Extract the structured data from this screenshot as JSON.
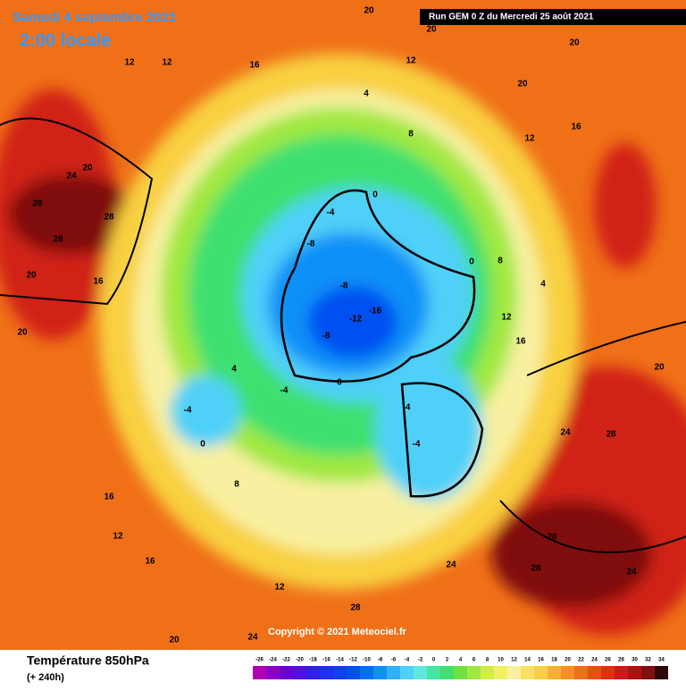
{
  "header": {
    "date": "Samedi 4 septembre 2021",
    "time": "2:00 locale",
    "run": "Run GEM 0 Z du Mercredi 25 août 2021"
  },
  "footer": {
    "copyright": "Copyright © 2021 Meteociel.fr",
    "title": "Température 850hPa",
    "lead": "(+ 240h)"
  },
  "scale": {
    "ticks": [
      -26,
      -24,
      -22,
      -20,
      -18,
      -16,
      -14,
      -12,
      -10,
      -8,
      -6,
      -4,
      -2,
      0,
      2,
      4,
      6,
      8,
      10,
      12,
      14,
      16,
      18,
      20,
      22,
      24,
      26,
      28,
      30,
      32,
      34
    ],
    "colors": [
      "#b000b0",
      "#8a00c8",
      "#6a00d8",
      "#5010e0",
      "#3020e8",
      "#2030f0",
      "#1040f0",
      "#0050f0",
      "#0070f8",
      "#1090f8",
      "#30b0f8",
      "#50d0f8",
      "#60e8e0",
      "#40e8a0",
      "#40e070",
      "#70e040",
      "#a0e840",
      "#d0f040",
      "#f0f060",
      "#f8f0a0",
      "#f8e060",
      "#f8d040",
      "#f8b030",
      "#f89020",
      "#f07018",
      "#e85010",
      "#e03010",
      "#d01818",
      "#b01010",
      "#801010",
      "#300808"
    ]
  },
  "map_labels": [
    28,
    28,
    24,
    28,
    20,
    20,
    20,
    16,
    12,
    12,
    16,
    12,
    20,
    20,
    20,
    20,
    16,
    12,
    8,
    4,
    0,
    -4,
    -8,
    -8,
    -12,
    -16,
    -8,
    -4,
    0,
    -4,
    -4,
    0,
    4,
    8,
    12,
    16,
    20,
    24,
    28,
    28,
    24,
    28,
    24,
    16,
    20,
    12,
    8,
    4,
    0,
    -4,
    12,
    16,
    24,
    28
  ]
}
